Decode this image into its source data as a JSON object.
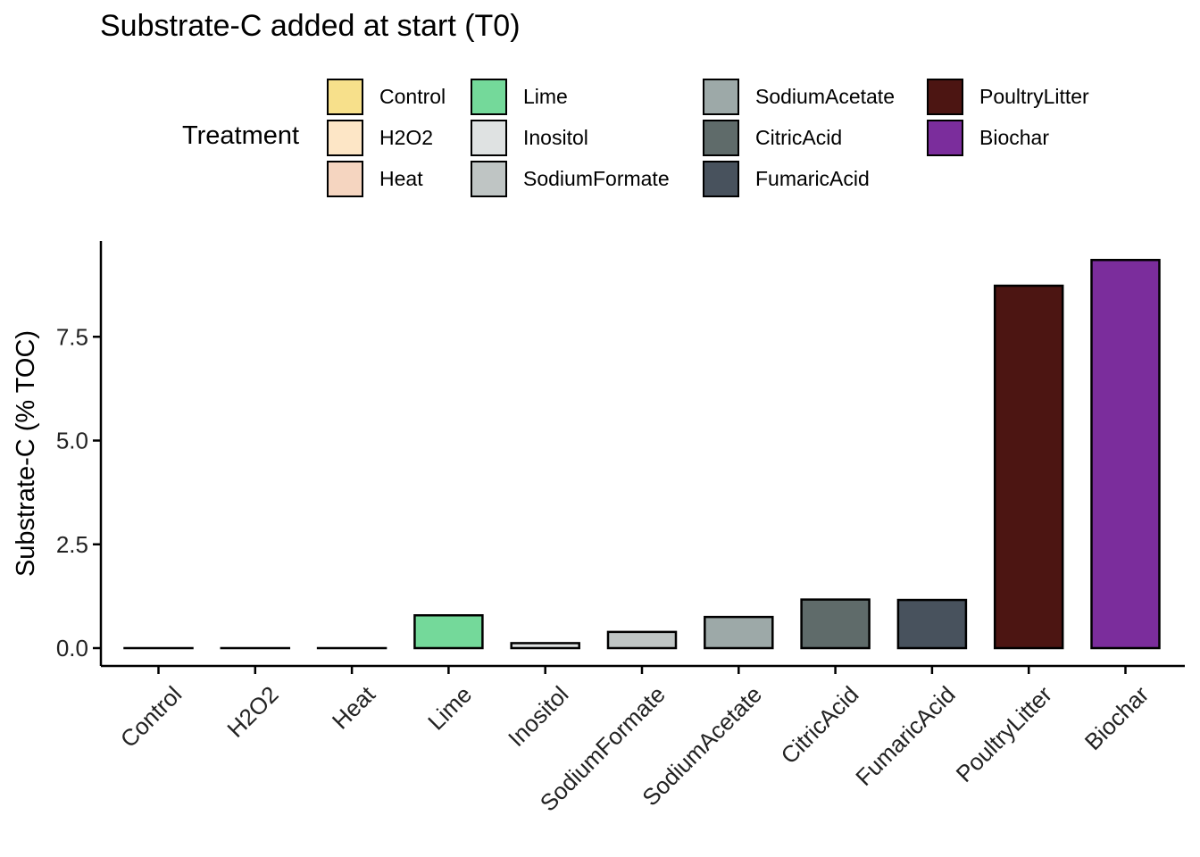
{
  "chart_data": {
    "type": "bar",
    "title": "Substrate-C added at start (T0)",
    "xlabel": "",
    "ylabel": "Substrate-C (% TOC)",
    "legend_title": "Treatment",
    "legend_position": "top",
    "grid": false,
    "ylim": [
      -0.45,
      9.9
    ],
    "yticks": [
      0.0,
      2.5,
      5.0,
      7.5
    ],
    "ytick_labels": [
      "0.0",
      "2.5",
      "5.0",
      "7.5"
    ],
    "categories": [
      "Control",
      "H2O2",
      "Heat",
      "Lime",
      "Inositol",
      "SodiumFormate",
      "SodiumAcetate",
      "CitricAcid",
      "FumaricAcid",
      "PoultryLitter",
      "Biochar"
    ],
    "values": [
      0.0,
      0.0,
      0.0,
      0.79,
      0.12,
      0.39,
      0.75,
      1.17,
      1.16,
      8.73,
      9.35
    ],
    "colors": [
      "#F7E08B",
      "#FDE6C6",
      "#F5D5C0",
      "#74D99A",
      "#DFE2E2",
      "#BFC5C4",
      "#9DA9A8",
      "#5F6B6A",
      "#48525D",
      "#4C1512",
      "#7B2D9C"
    ]
  }
}
